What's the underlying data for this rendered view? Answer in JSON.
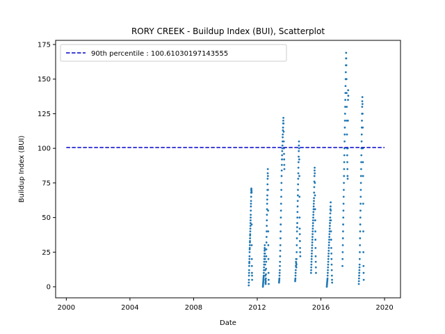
{
  "chart_data": {
    "type": "scatter",
    "title": "RORY CREEK - Buildup Index (BUI), Scatterplot",
    "xlabel": "Date",
    "ylabel": "Buildup Index (BUI)",
    "xlim": [
      "1999-05-01",
      "2021-01-01"
    ],
    "ylim": [
      -8,
      178
    ],
    "xticks": [
      "2000",
      "2004",
      "2008",
      "2012",
      "2016",
      "2020"
    ],
    "yticks": [
      0,
      25,
      50,
      75,
      100,
      125,
      150,
      175
    ],
    "colors": {
      "scatter": "#1f77b4",
      "reference": "#0000cc"
    },
    "grid": false,
    "legend_position": "top-left",
    "reference_line": {
      "label": "90th percentile : 100.61030197143555",
      "value": 100.61030197143555,
      "x_range": [
        "2000-01-01",
        "2020-01-01"
      ],
      "style": "dashed"
    },
    "series": [
      {
        "type": "scatter",
        "seasons": [
          {
            "start": "2011-06-20",
            "end": "2011-09-05",
            "values": [
              1,
              3,
              5,
              8,
              10,
              12,
              15,
              17,
              18,
              20,
              22,
              25,
              27,
              28,
              30,
              32,
              33,
              35,
              37,
              38,
              40,
              42,
              44,
              46,
              48,
              50,
              52,
              55,
              58,
              60,
              62,
              65,
              68,
              70,
              71,
              70,
              69,
              68,
              45,
              30,
              20,
              15,
              10,
              8,
              5
            ]
          },
          {
            "start": "2012-05-10",
            "end": "2012-09-20",
            "values": [
              0,
              1,
              2,
              3,
              4,
              5,
              6,
              7,
              8,
              10,
              12,
              14,
              16,
              18,
              20,
              22,
              24,
              26,
              28,
              30,
              27,
              24,
              20,
              16,
              12,
              8,
              5,
              3,
              2,
              4,
              6,
              9,
              13,
              18,
              22,
              27,
              32,
              36,
              40,
              44,
              48,
              52,
              56,
              60,
              63,
              66,
              70,
              74,
              78,
              82,
              85,
              80,
              70,
              55,
              40,
              30,
              20,
              10,
              5,
              2
            ]
          },
          {
            "start": "2013-05-15",
            "end": "2013-09-15",
            "values": [
              3,
              4,
              5,
              6,
              8,
              10,
              12,
              15,
              18,
              22,
              26,
              30,
              35,
              40,
              45,
              50,
              55,
              60,
              65,
              70,
              75,
              80,
              84,
              88,
              92,
              95,
              98,
              100,
              102,
              105,
              108,
              110,
              113,
              115,
              118,
              120,
              122,
              118,
              112,
              105,
              100,
              96,
              92,
              88,
              85
            ]
          },
          {
            "start": "2014-05-20",
            "end": "2014-09-15",
            "values": [
              4,
              5,
              6,
              8,
              10,
              12,
              15,
              18,
              20,
              17,
              14,
              16,
              20,
              25,
              30,
              35,
              40,
              43,
              46,
              50,
              54,
              58,
              62,
              66,
              70,
              74,
              78,
              82,
              86,
              90,
              94,
              98,
              102,
              105,
              100,
              92,
              80,
              65,
              50,
              42,
              38,
              33,
              28,
              25,
              22
            ]
          },
          {
            "start": "2015-05-20",
            "end": "2015-09-10",
            "values": [
              10,
              12,
              14,
              16,
              18,
              20,
              22,
              24,
              26,
              28,
              30,
              32,
              34,
              36,
              38,
              40,
              42,
              44,
              46,
              48,
              50,
              52,
              54,
              56,
              58,
              60,
              62,
              64,
              68,
              72,
              76,
              80,
              84,
              86,
              82,
              75,
              66,
              56,
              48,
              40,
              34,
              28,
              22,
              18,
              14,
              10
            ]
          },
          {
            "start": "2016-05-15",
            "end": "2016-09-15",
            "values": [
              0,
              1,
              2,
              3,
              4,
              5,
              6,
              8,
              10,
              12,
              14,
              16,
              18,
              20,
              22,
              24,
              26,
              28,
              30,
              32,
              34,
              36,
              38,
              40,
              42,
              44,
              46,
              48,
              50,
              53,
              56,
              58,
              61,
              55,
              48,
              40,
              34,
              28,
              24,
              20,
              16,
              12,
              8,
              5,
              3
            ]
          },
          {
            "start": "2017-05-10",
            "end": "2017-09-20",
            "values": [
              15,
              20,
              25,
              30,
              35,
              40,
              45,
              50,
              55,
              60,
              65,
              70,
              75,
              80,
              85,
              90,
              95,
              100,
              105,
              110,
              115,
              120,
              125,
              130,
              135,
              140,
              145,
              150,
              155,
              160,
              165,
              169,
              165,
              160,
              150,
              140,
              130,
              120,
              110,
              100,
              95,
              90,
              85,
              80,
              78,
              100,
              120,
              135,
              142,
              138
            ]
          },
          {
            "start": "2018-05-20",
            "end": "2018-09-10",
            "values": [
              2,
              4,
              6,
              8,
              10,
              12,
              14,
              16,
              20,
              25,
              30,
              35,
              40,
              45,
              50,
              55,
              60,
              65,
              70,
              75,
              80,
              85,
              90,
              95,
              100,
              105,
              110,
              115,
              120,
              125,
              130,
              134,
              137,
              132,
              125,
              115,
              100,
              90,
              80,
              60,
              40,
              25,
              15,
              10,
              5
            ]
          }
        ]
      }
    ]
  }
}
